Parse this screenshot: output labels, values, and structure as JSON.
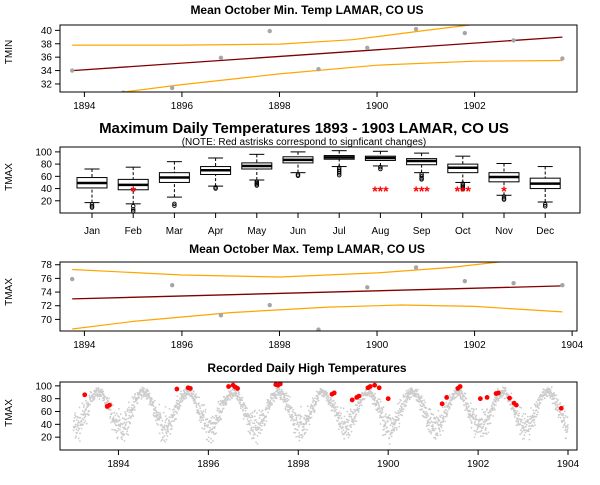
{
  "figure": {
    "background": "#ffffff"
  },
  "colors": {
    "fit": "#800000",
    "ci": "#ffa500",
    "point": "#a6a6a6",
    "dot": "#cccccc",
    "highlight": "#ff0000",
    "axis": "#000000"
  },
  "chart_data": [
    {
      "type": "scatter",
      "title": "Mean October Min. Temp LAMAR, CO US",
      "ylabel": "TMIN",
      "xlim": [
        1893.5,
        1904.1
      ],
      "ylim": [
        30.8,
        40.8
      ],
      "x_ticks": [
        "1894",
        "1896",
        "1898",
        "1900",
        "1902"
      ],
      "x_tick_values": [
        1894,
        1896,
        1898,
        1900,
        1902
      ],
      "y_ticks": [
        "32",
        "34",
        "36",
        "38",
        "40"
      ],
      "y_tick_values": [
        32,
        34,
        36,
        38,
        40
      ],
      "points": [
        [
          1893.75,
          34.0
        ],
        [
          1894.8,
          30.7
        ],
        [
          1895.8,
          31.4
        ],
        [
          1896.8,
          35.9
        ],
        [
          1897.8,
          39.9
        ],
        [
          1898.8,
          34.2
        ],
        [
          1899.8,
          37.4
        ],
        [
          1900.8,
          40.2
        ],
        [
          1901.8,
          39.6
        ],
        [
          1902.8,
          38.5
        ],
        [
          1903.8,
          35.8
        ]
      ],
      "fit_line": [
        [
          1893.75,
          34.0
        ],
        [
          1903.8,
          39.0
        ]
      ],
      "ci_upper": [
        [
          1893.75,
          37.8
        ],
        [
          1896,
          37.8
        ],
        [
          1898,
          37.95
        ],
        [
          1899.5,
          38.6
        ],
        [
          1901,
          40.0
        ],
        [
          1901.9,
          40.8
        ]
      ],
      "ci_lower": [
        [
          1894.8,
          30.8
        ],
        [
          1896,
          31.9
        ],
        [
          1898,
          33.5
        ],
        [
          1900,
          34.8
        ],
        [
          1902,
          35.4
        ],
        [
          1903.8,
          35.5
        ]
      ]
    },
    {
      "type": "box",
      "title": "Maximum Daily Temperatures 1893 - 1903 LAMAR, CO US",
      "note": "(NOTE: Red astrisks correspond to signficant changes)",
      "ylabel": "TMAX",
      "ylim": [
        0,
        108
      ],
      "y_ticks": [
        "20",
        "40",
        "60",
        "80",
        "100"
      ],
      "y_tick_values": [
        20,
        40,
        60,
        80,
        100
      ],
      "categories": [
        "Jan",
        "Feb",
        "Mar",
        "Apr",
        "May",
        "Jun",
        "Jul",
        "Aug",
        "Sep",
        "Oct",
        "Nov",
        "Dec"
      ],
      "boxes": [
        {
          "low": 17,
          "q1": 41,
          "median": 49,
          "q3": 58,
          "high": 72,
          "outliers": [
            14,
            11,
            9
          ]
        },
        {
          "low": 15,
          "q1": 38,
          "median": 46,
          "q3": 55,
          "high": 75,
          "outliers": [
            11,
            6,
            3
          ]
        },
        {
          "low": 26,
          "q1": 50,
          "median": 58,
          "q3": 66,
          "high": 84,
          "outliers": [
            15,
            12
          ]
        },
        {
          "low": 44,
          "q1": 63,
          "median": 70,
          "q3": 76,
          "high": 90,
          "outliers": [
            42,
            40
          ]
        },
        {
          "low": 54,
          "q1": 72,
          "median": 77,
          "q3": 82,
          "high": 96,
          "outliers": [
            51,
            49,
            47,
            45
          ]
        },
        {
          "low": 66,
          "q1": 82,
          "median": 87,
          "q3": 92,
          "high": 100,
          "outliers": [
            63,
            61
          ]
        },
        {
          "low": 76,
          "q1": 88,
          "median": 91,
          "q3": 94,
          "high": 102,
          "outliers": [
            74,
            71,
            68,
            65,
            62
          ]
        },
        {
          "low": 77,
          "q1": 86,
          "median": 90,
          "q3": 93,
          "high": 101,
          "outliers": [
            75,
            72
          ]
        },
        {
          "low": 66,
          "q1": 79,
          "median": 85,
          "q3": 89,
          "high": 98,
          "outliers": [
            63,
            60,
            57,
            55
          ]
        },
        {
          "low": 50,
          "q1": 66,
          "median": 74,
          "q3": 80,
          "high": 93,
          "outliers": [
            48,
            45,
            43,
            41,
            39
          ]
        },
        {
          "low": 29,
          "q1": 51,
          "median": 59,
          "q3": 66,
          "high": 81,
          "outliers": [
            27,
            24,
            22
          ]
        },
        {
          "low": 18,
          "q1": 40,
          "median": 48,
          "q3": 57,
          "high": 76,
          "outliers": [
            14,
            11
          ]
        }
      ],
      "stars": [
        {
          "category": "Feb",
          "text": "*",
          "y": 38
        },
        {
          "category": "Aug",
          "text": "***",
          "y": 38
        },
        {
          "category": "Sep",
          "text": "***",
          "y": 38
        },
        {
          "category": "Oct",
          "text": "***",
          "y": 38
        },
        {
          "category": "Nov",
          "text": "*",
          "y": 38
        }
      ]
    },
    {
      "type": "scatter",
      "title": "Mean October Max. Temp LAMAR, CO US",
      "ylabel": "TMAX",
      "xlim": [
        1893.5,
        1904.1
      ],
      "ylim": [
        68.3,
        78.4
      ],
      "x_ticks": [
        "1894",
        "1896",
        "1898",
        "1900",
        "1902",
        "1904"
      ],
      "x_tick_values": [
        1894,
        1896,
        1898,
        1900,
        1902,
        1904
      ],
      "y_ticks": [
        "70",
        "72",
        "74",
        "76",
        "78"
      ],
      "y_tick_values": [
        70,
        72,
        74,
        76,
        78
      ],
      "points": [
        [
          1893.75,
          75.9
        ],
        [
          1895.8,
          75.0
        ],
        [
          1896.8,
          70.6
        ],
        [
          1897.8,
          72.1
        ],
        [
          1898.8,
          68.5
        ],
        [
          1899.8,
          74.7
        ],
        [
          1900.8,
          77.6
        ],
        [
          1901.8,
          75.6
        ],
        [
          1902.8,
          75.3
        ],
        [
          1903.8,
          75.0
        ]
      ],
      "fit_line": [
        [
          1893.75,
          73.0
        ],
        [
          1903.8,
          74.9
        ]
      ],
      "ci_upper": [
        [
          1893.75,
          77.3
        ],
        [
          1896,
          76.5
        ],
        [
          1898,
          76.2
        ],
        [
          1900,
          76.8
        ],
        [
          1901.5,
          77.6
        ],
        [
          1902.5,
          78.4
        ]
      ],
      "ci_lower": [
        [
          1893.75,
          68.6
        ],
        [
          1895,
          69.7
        ],
        [
          1897,
          71.0
        ],
        [
          1899,
          71.8
        ],
        [
          1900.5,
          72.1
        ],
        [
          1902,
          71.9
        ],
        [
          1903.8,
          71.1
        ]
      ]
    },
    {
      "type": "scatter",
      "title": "Recorded Daily High Temperatures",
      "ylabel": "TMAX",
      "xlim": [
        1892.7,
        1904.2
      ],
      "ylim": [
        0,
        106
      ],
      "x_ticks": [
        "1894",
        "1896",
        "1898",
        "1900",
        "1902",
        "1904"
      ],
      "x_tick_values": [
        1894,
        1896,
        1898,
        1900,
        1902,
        1904
      ],
      "y_ticks": [
        "20",
        "40",
        "60",
        "80",
        "100"
      ],
      "y_tick_values": [
        20,
        40,
        60,
        80,
        100
      ],
      "daily_range": [
        1893.0,
        1904.0
      ],
      "seasonal_cycle": {
        "mean": 63,
        "amplitude": 27,
        "peak_fraction_of_year": 0.55
      },
      "highlights": [
        [
          1893.25,
          86
        ],
        [
          1893.75,
          68
        ],
        [
          1893.8,
          70
        ],
        [
          1895.3,
          95
        ],
        [
          1895.55,
          97
        ],
        [
          1895.6,
          96
        ],
        [
          1896.45,
          99
        ],
        [
          1896.55,
          101
        ],
        [
          1896.6,
          98
        ],
        [
          1896.65,
          96
        ],
        [
          1897.5,
          102
        ],
        [
          1897.55,
          101
        ],
        [
          1897.6,
          103
        ],
        [
          1898.75,
          87
        ],
        [
          1898.8,
          89
        ],
        [
          1899.2,
          78
        ],
        [
          1899.3,
          82
        ],
        [
          1899.35,
          84
        ],
        [
          1899.55,
          97
        ],
        [
          1899.6,
          99
        ],
        [
          1899.7,
          101
        ],
        [
          1899.8,
          97
        ],
        [
          1900.0,
          80
        ],
        [
          1901.2,
          72
        ],
        [
          1901.3,
          82
        ],
        [
          1901.55,
          96
        ],
        [
          1901.6,
          99
        ],
        [
          1902.05,
          80
        ],
        [
          1902.2,
          82
        ],
        [
          1902.4,
          88
        ],
        [
          1902.45,
          89
        ],
        [
          1902.7,
          81
        ],
        [
          1902.8,
          73
        ],
        [
          1902.85,
          70
        ],
        [
          1903.85,
          65
        ]
      ]
    }
  ]
}
